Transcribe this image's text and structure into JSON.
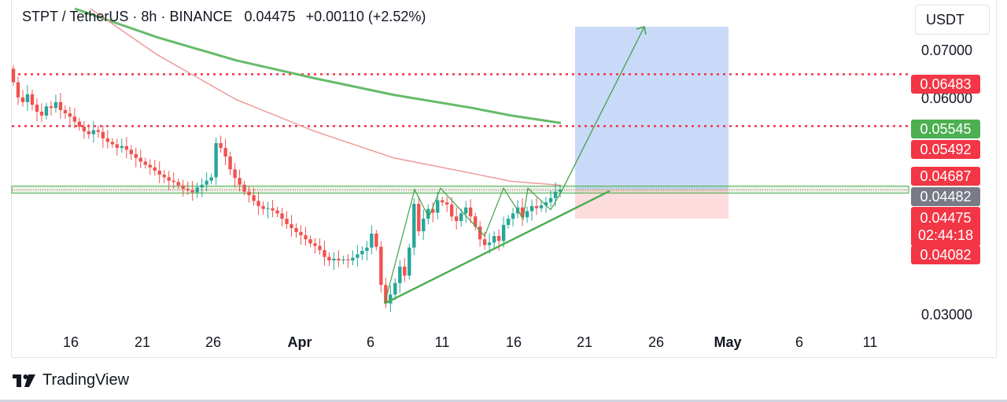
{
  "header": {
    "symbol": "STPT / TetherUS",
    "timeframe": "8h",
    "exchange": "BINANCE",
    "separator": "·",
    "price": "0.04475",
    "change": "+0.00110 (+2.52%)"
  },
  "currency_button": "USDT",
  "footer": {
    "brand": "TradingView"
  },
  "colors": {
    "up": "#26a69a",
    "down": "#ef5350",
    "ma_green": "#66bb6a",
    "ma_red": "#ef9a9a",
    "target_zone": "#c9daf8",
    "stop_zone": "#fcdcdc",
    "level_red": "#f23645",
    "label_gray": "#787b86",
    "label_green": "#4caf50"
  },
  "price_labels": {
    "level_1": "0.06483",
    "ma_green": "0.05545",
    "level_2": "0.05492",
    "ma_red": "0.04687",
    "prev_close": "0.04482",
    "current_price": "0.04475",
    "countdown": "02:44:18",
    "stop": "0.04082"
  },
  "chart_data": {
    "type": "candlestick",
    "symbol": "STPT / TetherUS",
    "interval": "8h",
    "y_axis": {
      "ticks": [
        "0.03000",
        "0.06000",
        "0.07000"
      ],
      "range": [
        0.027,
        0.0775
      ],
      "scale": "log"
    },
    "x_axis": {
      "ticks": [
        "16",
        "21",
        "26",
        "Apr",
        "6",
        "11",
        "16",
        "21",
        "26",
        "May",
        "6",
        "11"
      ]
    },
    "horizontal_levels": [
      0.06483,
      0.05492
    ],
    "support_zone": [
      0.0443,
      0.0453
    ],
    "moving_averages": [
      {
        "color": "green",
        "last_value": 0.05545
      },
      {
        "color": "red",
        "last_value": 0.04687
      }
    ],
    "trade_projection": {
      "entry": 0.04482,
      "target": 0.0755,
      "stop": 0.04082
    },
    "candles_close": [
      0.0632,
      0.0602,
      0.0593,
      0.0608,
      0.0588,
      0.0575,
      0.0568,
      0.0585,
      0.0582,
      0.0593,
      0.0578,
      0.0572,
      0.0566,
      0.0557,
      0.0548,
      0.054,
      0.0535,
      0.0542,
      0.0539,
      0.0528,
      0.0522,
      0.0518,
      0.0512,
      0.0515,
      0.0509,
      0.0502,
      0.0496,
      0.049,
      0.0485,
      0.0481,
      0.0476,
      0.047,
      0.0466,
      0.0461,
      0.0459,
      0.0454,
      0.0449,
      0.0447,
      0.0444,
      0.0451,
      0.0455,
      0.0461,
      0.0466,
      0.052,
      0.0512,
      0.0498,
      0.0478,
      0.0465,
      0.0455,
      0.0445,
      0.044,
      0.0432,
      0.0425,
      0.0421,
      0.0422,
      0.0419,
      0.0415,
      0.0408,
      0.0401,
      0.0396,
      0.0391,
      0.0387,
      0.0382,
      0.0377,
      0.0374,
      0.0369,
      0.0361,
      0.0357,
      0.0359,
      0.0357,
      0.0358,
      0.0357,
      0.036,
      0.0364,
      0.0368,
      0.0372,
      0.0389,
      0.0373,
      0.033,
      0.0311,
      0.032,
      0.0332,
      0.035,
      0.034,
      0.0372,
      0.0428,
      0.0392,
      0.0408,
      0.0421,
      0.0416,
      0.0433,
      0.043,
      0.0427,
      0.0411,
      0.0405,
      0.0415,
      0.0423,
      0.0411,
      0.0398,
      0.0382,
      0.0375,
      0.0378,
      0.0386,
      0.038,
      0.04,
      0.0408,
      0.0415,
      0.0423,
      0.041,
      0.0418,
      0.0425,
      0.0422,
      0.0426,
      0.043,
      0.0436,
      0.0445,
      0.0448
    ]
  }
}
